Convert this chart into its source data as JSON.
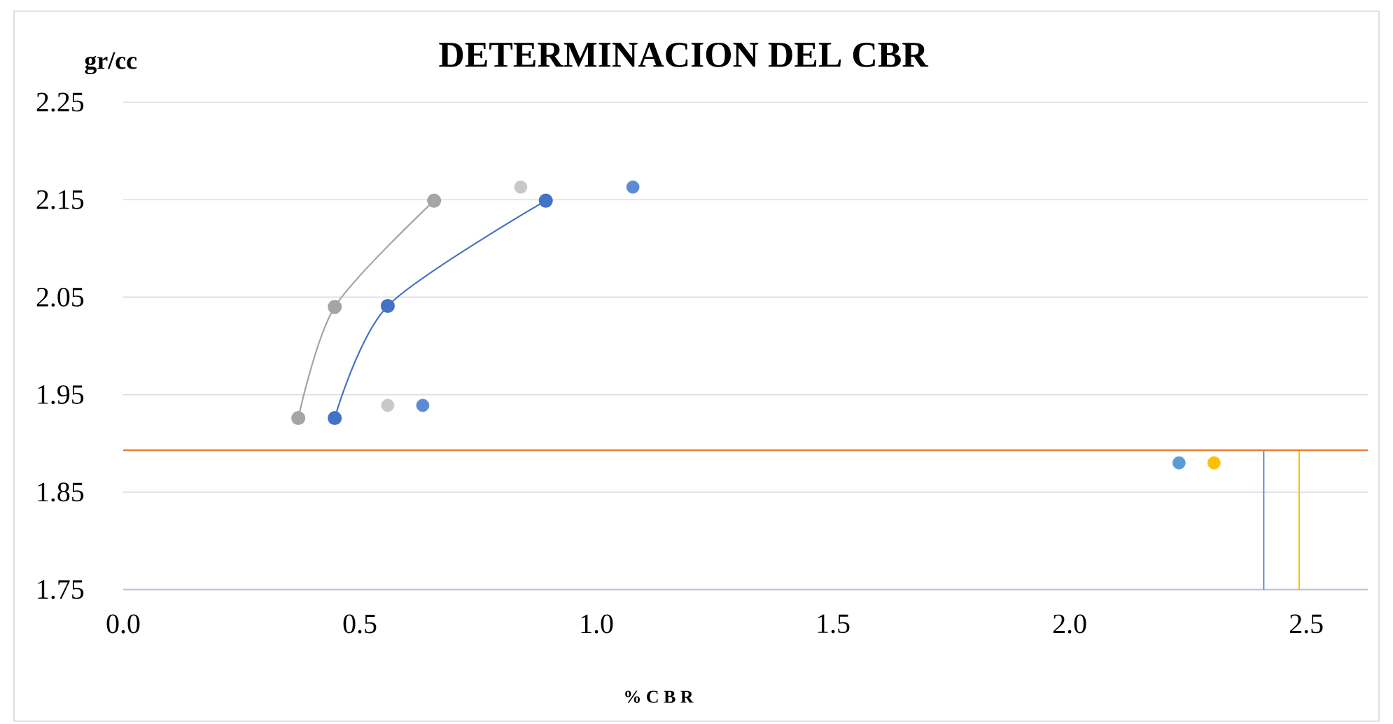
{
  "chart_data": {
    "type": "scatter",
    "title": "DETERMINACION   DEL  CBR",
    "xlabel": "% C B R",
    "ylabel": "gr/cc",
    "xlim": [
      0,
      2.63
    ],
    "xticks": [
      {
        "value": 0,
        "label": "0.0"
      },
      0.5,
      {
        "value": 1,
        "label": "1.0"
      },
      1.5,
      {
        "value": 2,
        "label": "2.0"
      },
      2.5
    ],
    "ylim": [
      1.75,
      2.25
    ],
    "yticks": [
      1.75,
      1.85,
      1.95,
      2.05,
      2.15,
      2.25
    ],
    "grid": "y",
    "series": [
      {
        "type": "line",
        "marker": "circle",
        "color": "#a5a5a5",
        "x": [
          0.37,
          0.447,
          0.657
        ],
        "values": [
          1.926,
          2.04,
          2.149
        ]
      },
      {
        "type": "line",
        "marker": "circle",
        "color": "#4472c4",
        "x": [
          0.447,
          0.559,
          0.893
        ],
        "values": [
          1.926,
          2.041,
          2.149
        ]
      },
      {
        "marker": "circle",
        "color": "#c8c8c8",
        "x": [
          0.559,
          0.84
        ],
        "values": [
          1.939,
          2.163
        ]
      },
      {
        "marker": "circle",
        "color": "#5b8bd6",
        "x": [
          0.633,
          1.077
        ],
        "values": [
          1.939,
          2.163
        ]
      },
      {
        "marker": "circle",
        "color": "#5b9bd5",
        "x": [
          2.231
        ],
        "values": [
          1.88
        ]
      },
      {
        "marker": "circle",
        "color": "#ffc000",
        "x": [
          2.305
        ],
        "values": [
          1.88
        ]
      },
      {
        "type": "line",
        "marker": "none",
        "color": "#5b9bd5",
        "x": [
          2.41,
          2.41
        ],
        "values": [
          1.75,
          1.893
        ]
      },
      {
        "type": "line",
        "marker": "none",
        "color": "#ffc000",
        "x": [
          2.485,
          2.485
        ],
        "values": [
          1.75,
          1.893
        ]
      }
    ],
    "ref_lines": [
      {
        "axis": "y",
        "value": 1.893,
        "color": "#ed7d31"
      }
    ]
  }
}
